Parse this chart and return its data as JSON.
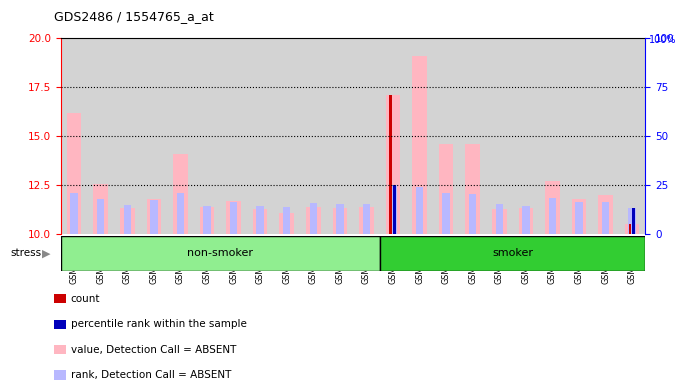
{
  "title": "GDS2486 / 1554765_a_at",
  "samples": [
    "GSM101095",
    "GSM101096",
    "GSM101097",
    "GSM101098",
    "GSM101099",
    "GSM101100",
    "GSM101101",
    "GSM101102",
    "GSM101103",
    "GSM101104",
    "GSM101105",
    "GSM101106",
    "GSM101107",
    "GSM101108",
    "GSM101109",
    "GSM101110",
    "GSM101111",
    "GSM101112",
    "GSM101113",
    "GSM101114",
    "GSM101115",
    "GSM101116"
  ],
  "groups": [
    "non-smoker",
    "non-smoker",
    "non-smoker",
    "non-smoker",
    "non-smoker",
    "non-smoker",
    "non-smoker",
    "non-smoker",
    "non-smoker",
    "non-smoker",
    "non-smoker",
    "non-smoker",
    "smoker",
    "smoker",
    "smoker",
    "smoker",
    "smoker",
    "smoker",
    "smoker",
    "smoker",
    "smoker",
    "smoker"
  ],
  "non_smoker_count": 12,
  "value_absent": [
    16.2,
    12.55,
    11.35,
    11.8,
    14.1,
    11.4,
    11.7,
    11.3,
    11.1,
    11.4,
    11.35,
    11.4,
    17.1,
    19.1,
    14.6,
    14.6,
    11.3,
    11.35,
    12.7,
    11.8,
    12.0,
    10.5
  ],
  "rank_absent": [
    12.1,
    11.8,
    11.5,
    11.75,
    12.1,
    11.45,
    11.65,
    11.45,
    11.4,
    11.6,
    11.55,
    11.55,
    12.5,
    12.4,
    12.1,
    12.05,
    11.55,
    11.45,
    11.85,
    11.65,
    11.65,
    11.35
  ],
  "count_vals": [
    0,
    0,
    0,
    0,
    0,
    0,
    0,
    0,
    0,
    0,
    0,
    0,
    17.1,
    0,
    0,
    0,
    0,
    0,
    0,
    0,
    0,
    10.5
  ],
  "percentile_vals": [
    0,
    0,
    0,
    0,
    0,
    0,
    0,
    0,
    0,
    0,
    0,
    0,
    12.5,
    0,
    0,
    0,
    0,
    0,
    0,
    0,
    0,
    11.35
  ],
  "ylim_left": [
    10,
    20
  ],
  "ylim_right": [
    0,
    100
  ],
  "yticks_left": [
    10,
    12.5,
    15,
    17.5,
    20
  ],
  "yticks_right": [
    0,
    25,
    50,
    75,
    100
  ],
  "dotted_lines": [
    12.5,
    15,
    17.5
  ],
  "color_value": "#FFB6C1",
  "color_rank": "#B8B8FF",
  "color_count": "#CC0000",
  "color_percentile": "#0000BB",
  "color_bg_strip": "#D3D3D3",
  "color_nonsmoker": "#90EE90",
  "color_smoker": "#32CD32",
  "legend_items": [
    {
      "color": "#CC0000",
      "label": "count"
    },
    {
      "color": "#0000BB",
      "label": "percentile rank within the sample"
    },
    {
      "color": "#FFB6C1",
      "label": "value, Detection Call = ABSENT"
    },
    {
      "color": "#B8B8FF",
      "label": "rank, Detection Call = ABSENT"
    }
  ]
}
